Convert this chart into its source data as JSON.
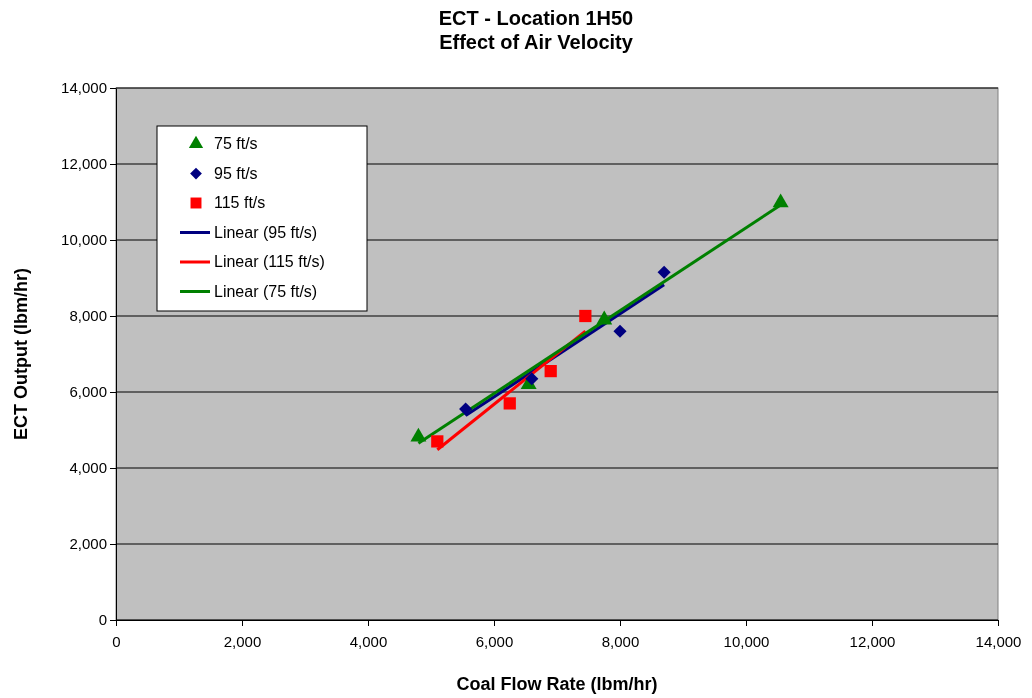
{
  "chart_data": {
    "type": "scatter",
    "title": "ECT - Location 1H50\nEffect of Air Velocity",
    "xlabel": "Coal Flow Rate (lbm/hr)",
    "ylabel": "ECT Output (lbm/hr)",
    "xlim": [
      0,
      14000
    ],
    "ylim": [
      0,
      14000
    ],
    "xticks": [
      {
        "value": 0,
        "label": "0"
      },
      {
        "value": 2000,
        "label": "2,000"
      },
      {
        "value": 4000,
        "label": "4,000"
      },
      {
        "value": 6000,
        "label": "6,000"
      },
      {
        "value": 8000,
        "label": "8,000"
      },
      {
        "value": 10000,
        "label": "10,000"
      },
      {
        "value": 12000,
        "label": "12,000"
      },
      {
        "value": 14000,
        "label": "14,000"
      }
    ],
    "yticks": [
      {
        "value": 0,
        "label": "0"
      },
      {
        "value": 2000,
        "label": "2,000"
      },
      {
        "value": 4000,
        "label": "4,000"
      },
      {
        "value": 6000,
        "label": "6,000"
      },
      {
        "value": 8000,
        "label": "8,000"
      },
      {
        "value": 10000,
        "label": "10,000"
      },
      {
        "value": 12000,
        "label": "12,000"
      },
      {
        "value": 14000,
        "label": "14,000"
      }
    ],
    "grid": "y",
    "legend": "top left",
    "series": [
      {
        "name": "75 ft/s",
        "marker": "triangle",
        "color": "#008000",
        "x": [
          4800,
          6550,
          7750,
          10550
        ],
        "values": [
          4820,
          6200,
          7900,
          10980
        ]
      },
      {
        "name": "95 ft/s",
        "marker": "diamond",
        "color": "#000080",
        "x": [
          5550,
          6600,
          8000,
          8700
        ],
        "values": [
          5550,
          6350,
          7600,
          9150
        ]
      },
      {
        "name": "115 ft/s",
        "marker": "square",
        "color": "#ff0000",
        "x": [
          5100,
          6250,
          6900,
          7450
        ],
        "values": [
          4700,
          5700,
          6550,
          8000
        ]
      },
      {
        "name": "Linear (95 ft/s)",
        "type": "line",
        "marker": "none",
        "color": "#000080",
        "x": [
          5550,
          8700
        ],
        "values": [
          5380,
          8820
        ]
      },
      {
        "name": "Linear (115 ft/s)",
        "type": "line",
        "marker": "none",
        "color": "#ff0000",
        "x": [
          5100,
          7450
        ],
        "values": [
          4480,
          7600
        ]
      },
      {
        "name": "Linear (75 ft/s)",
        "type": "line",
        "marker": "none",
        "color": "#008000",
        "x": [
          4800,
          10550
        ],
        "values": [
          4650,
          10920
        ]
      }
    ]
  }
}
